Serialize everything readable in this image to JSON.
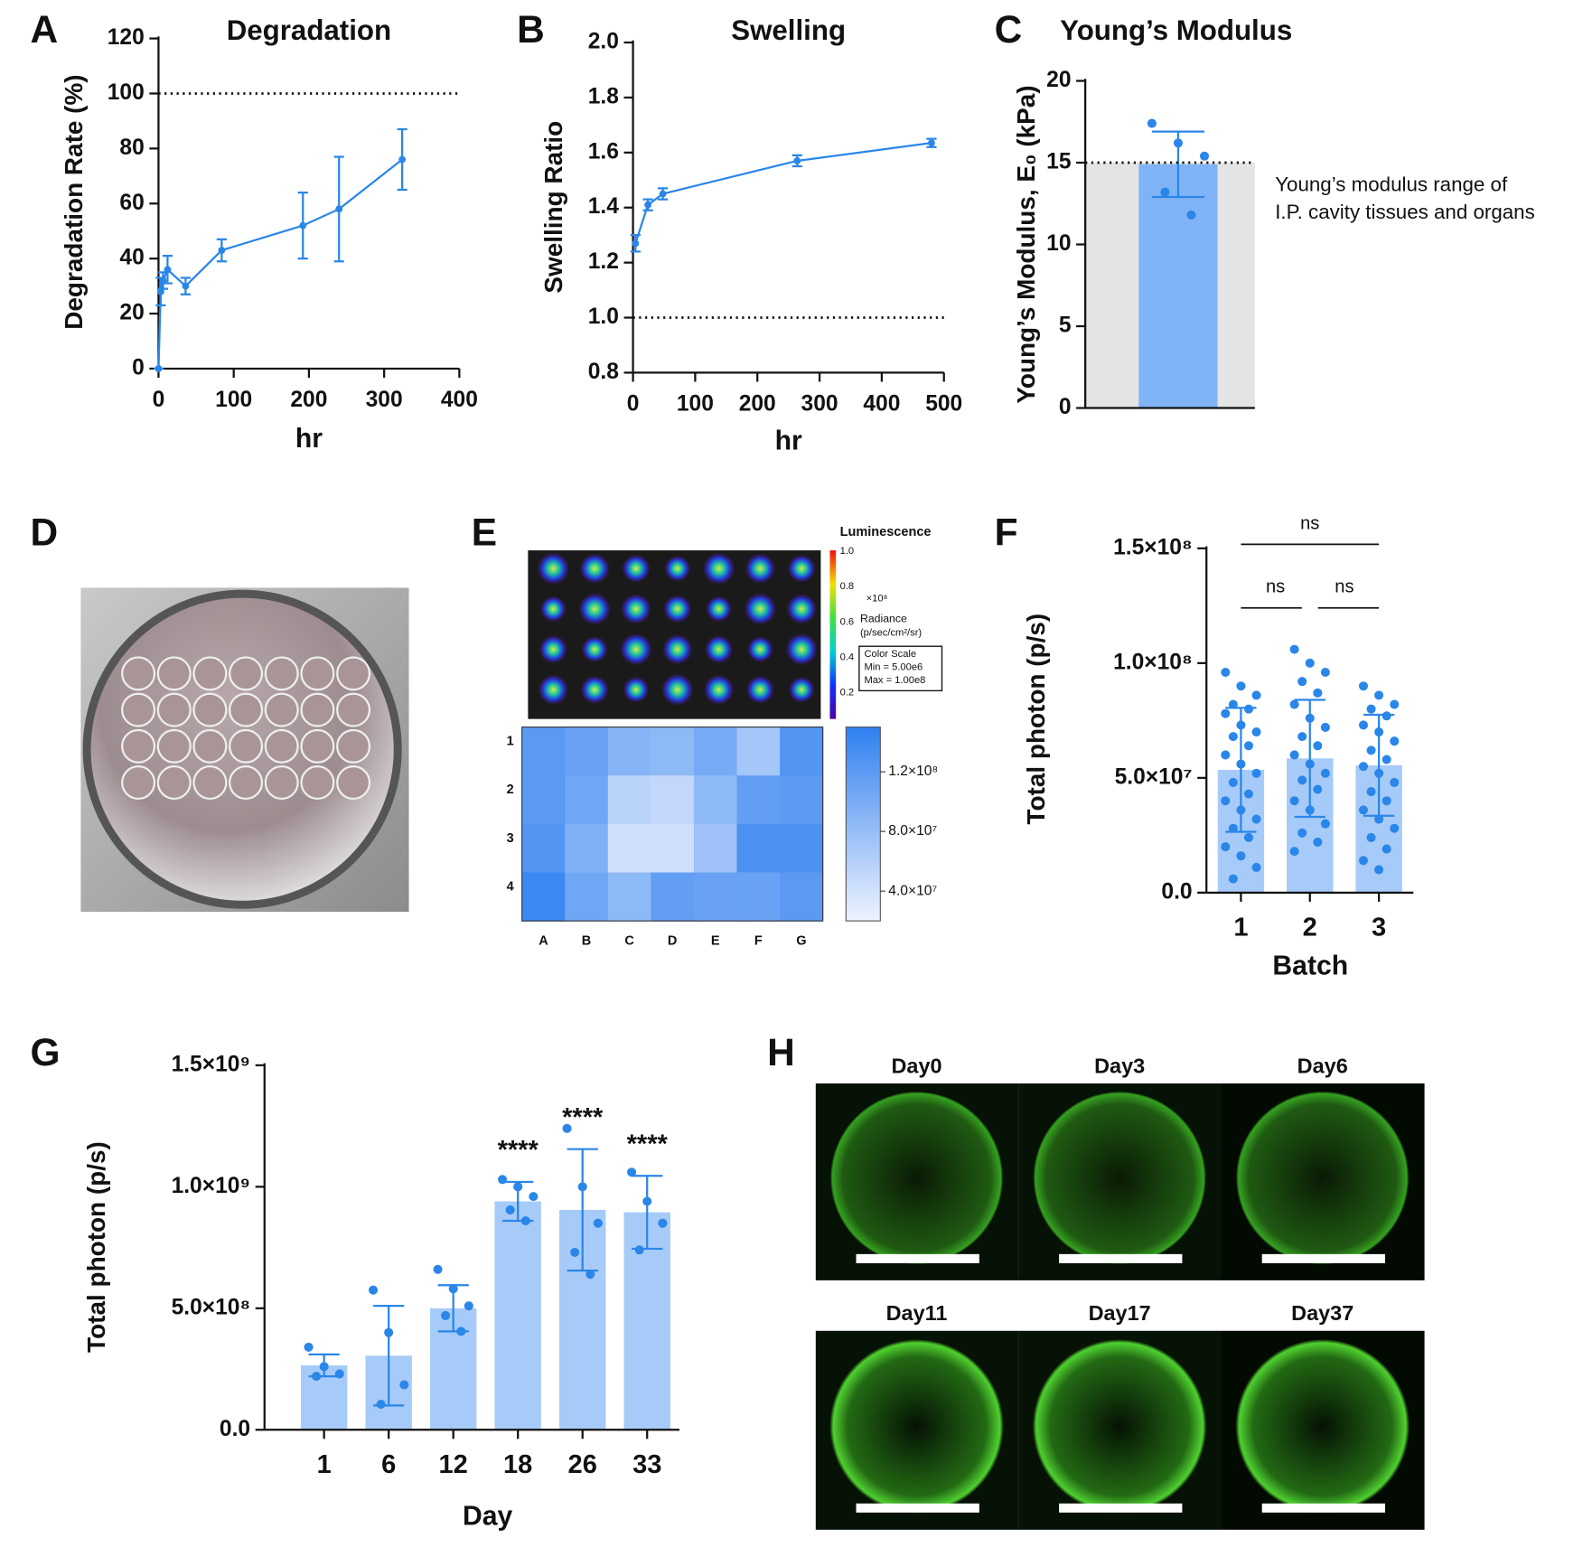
{
  "chart_data": [
    {
      "type": "line",
      "panel": "A",
      "title": "Degradation",
      "xlabel": "hr",
      "ylabel": "Degradation Rate (%)",
      "color": "#2a86e8",
      "x": [
        0,
        3,
        6,
        12,
        36,
        84,
        192,
        240,
        324
      ],
      "values": [
        0,
        28,
        32,
        36,
        30,
        43,
        52,
        58,
        76
      ],
      "errors": [
        0,
        5,
        3,
        5,
        3,
        4,
        12,
        19,
        11
      ],
      "refline": 100,
      "xlim": [
        0,
        400
      ],
      "xticks": [
        0,
        100,
        200,
        300,
        400
      ],
      "ylim": [
        0,
        120
      ],
      "yticks": [
        0,
        20,
        40,
        60,
        80,
        100,
        120
      ]
    },
    {
      "type": "line",
      "panel": "B",
      "title": "Swelling",
      "xlabel": "hr",
      "ylabel": "Swelling Ratio",
      "color": "#2a86e8",
      "x": [
        4,
        24,
        48,
        264,
        480
      ],
      "values": [
        1.27,
        1.41,
        1.45,
        1.57,
        1.635
      ],
      "errors": [
        0.03,
        0.02,
        0.02,
        0.02,
        0.015
      ],
      "refline": 1,
      "xlim": [
        0,
        500
      ],
      "xticks": [
        0,
        100,
        200,
        300,
        400,
        500
      ],
      "ylim": [
        0.8,
        2
      ],
      "yticks": [
        0.8,
        {
          "value": 1,
          "label": "1.0"
        },
        1.2,
        1.4,
        1.6,
        1.8,
        {
          "value": 2,
          "label": "2.0"
        }
      ]
    },
    {
      "type": "bar",
      "panel": "C",
      "title": "Young’s Modulus",
      "ylabel": "Young’s Modulus, E₀ (kPa)",
      "color": "#7fb3f5",
      "point_color": "#2a86e8",
      "values": [
        14.9
      ],
      "errors": [
        2.0
      ],
      "points": [
        [
          17.4,
          16.2,
          15.4,
          13.2,
          11.8
        ]
      ],
      "refline": 15,
      "shade": true,
      "annotation": [
        "Young’s modulus range of",
        "I.P. cavity tissues and organs"
      ],
      "ylim": [
        0,
        20
      ],
      "yticks": [
        0,
        5,
        10,
        15,
        20
      ]
    },
    {
      "type": "heatmap",
      "panel": "E",
      "rows": [
        "1",
        "2",
        "3",
        "4"
      ],
      "columns": [
        "A",
        "B",
        "C",
        "D",
        "E",
        "F",
        "G"
      ],
      "values": [
        [
          120000000.0,
          110000000.0,
          90000000.0,
          85000000.0,
          100000000.0,
          70000000.0,
          125000000.0
        ],
        [
          120000000.0,
          105000000.0,
          55000000.0,
          50000000.0,
          85000000.0,
          115000000.0,
          120000000.0
        ],
        [
          125000000.0,
          95000000.0,
          40000000.0,
          40000000.0,
          75000000.0,
          130000000.0,
          130000000.0
        ],
        [
          140000000.0,
          105000000.0,
          85000000.0,
          115000000.0,
          110000000.0,
          110000000.0,
          120000000.0
        ]
      ],
      "low_color": "#eef2fe",
      "high_color": "#2e7ff0",
      "zlim": [
        20000000.0,
        150000000.0
      ],
      "zticks": [
        {
          "value": 40000000.0,
          "label": "4.0×10⁷"
        },
        {
          "value": 80000000.0,
          "label": "8.0×10⁷"
        },
        {
          "value": 120000000.0,
          "label": "1.2×10⁸"
        }
      ]
    },
    {
      "type": "bar",
      "panel": "F",
      "xlabel": "Batch",
      "ylabel": "Total photon (p/s)",
      "color": "#a7cbf8",
      "point_color": "#2a86e8",
      "categories": [
        "1",
        "2",
        "3"
      ],
      "values": [
        53500000.0,
        58500000.0,
        55500000.0
      ],
      "errors": [
        27000000.0,
        25500000.0,
        22000000.0
      ],
      "points": [
        [
          96000000.0,
          90000000.0,
          86000000.0,
          82000000.0,
          80000000.0,
          78000000.0,
          73000000.0,
          70000000.0,
          68000000.0,
          64000000.0,
          60000000.0,
          56000000.0,
          52000000.0,
          48000000.0,
          43000000.0,
          40000000.0,
          36000000.0,
          32000000.0,
          28000000.0,
          24000000.0,
          20000000.0,
          16000000.0,
          11000000.0,
          6000000.0
        ],
        [
          106000000.0,
          100000000.0,
          96000000.0,
          92000000.0,
          87000000.0,
          82000000.0,
          76000000.0,
          72000000.0,
          68000000.0,
          64000000.0,
          60000000.0,
          56000000.0,
          52000000.0,
          49000000.0,
          45000000.0,
          40000000.0,
          36000000.0,
          30000000.0,
          26000000.0,
          22000000.0,
          18000000.0
        ],
        [
          90000000.0,
          86000000.0,
          82000000.0,
          80000000.0,
          77000000.0,
          73000000.0,
          70000000.0,
          66000000.0,
          62000000.0,
          58000000.0,
          55000000.0,
          52000000.0,
          48000000.0,
          44000000.0,
          40000000.0,
          36000000.0,
          32000000.0,
          28000000.0,
          24000000.0,
          19000000.0,
          14000000.0,
          10000000.0
        ]
      ],
      "comparisons": [
        {
          "groups": [
            "1",
            "3"
          ],
          "label": "ns"
        },
        {
          "groups": [
            "1",
            "2"
          ],
          "label": "ns"
        },
        {
          "groups": [
            "2",
            "3"
          ],
          "label": "ns"
        }
      ],
      "ylim": [
        0,
        150000000.0
      ],
      "yticks": [
        {
          "value": 0,
          "label": "0.0"
        },
        {
          "value": 50000000.0,
          "label": "5.0×10⁷"
        },
        {
          "value": 100000000.0,
          "label": "1.0×10⁸"
        },
        {
          "value": 150000000.0,
          "label": "1.5×10⁸"
        }
      ]
    },
    {
      "type": "bar",
      "panel": "G",
      "xlabel": "Day",
      "ylabel": "Total photon (p/s)",
      "color": "#a7cbf8",
      "point_color": "#2a86e8",
      "categories": [
        "1",
        "6",
        "12",
        "18",
        "26",
        "33"
      ],
      "values": [
        265000000.0,
        305000000.0,
        500000000.0,
        940000000.0,
        905000000.0,
        895000000.0
      ],
      "errors": [
        45000000.0,
        205000000.0,
        95000000.0,
        80000000.0,
        250000000.0,
        150000000.0
      ],
      "points": [
        [
          340000000.0,
          260000000.0,
          230000000.0,
          220000000.0
        ],
        [
          575000000.0,
          400000000.0,
          185000000.0,
          105000000.0
        ],
        [
          660000000.0,
          580000000.0,
          510000000.0,
          470000000.0,
          405000000.0
        ],
        [
          1030000000.0,
          1000000000.0,
          960000000.0,
          905000000.0,
          860000000.0
        ],
        [
          1240000000.0,
          1000000000.0,
          850000000.0,
          730000000.0,
          640000000.0
        ],
        [
          1060000000.0,
          940000000.0,
          850000000.0,
          740000000.0
        ]
      ],
      "sig_labels": [
        null,
        null,
        null,
        "****",
        "****",
        "****"
      ],
      "ylim": [
        0,
        1500000000.0
      ],
      "yticks": [
        {
          "value": 0,
          "label": "0.0"
        },
        {
          "value": 500000000.0,
          "label": "5.0×10⁸"
        },
        {
          "value": 1000000000.0,
          "label": "1.0×10⁹"
        },
        {
          "value": 1500000000.0,
          "label": "1.5×10⁹"
        }
      ]
    }
  ],
  "images": {
    "D": {
      "panel": "D"
    },
    "E": {
      "title": "Luminescence",
      "scale_ticks": [
        "1.0",
        "0.8",
        "0.6",
        "0.4",
        "0.2"
      ],
      "multiplier": "×10⁸",
      "quantity": "Radiance",
      "unit": "(p/sec/cm²/sr)",
      "box": [
        "Color Scale",
        "Min = 5.00e6",
        "Max = 1.00e8"
      ]
    },
    "H": {
      "panel": "H",
      "days": [
        "Day0",
        "Day3",
        "Day6",
        "Day11",
        "Day17",
        "Day37"
      ]
    }
  }
}
